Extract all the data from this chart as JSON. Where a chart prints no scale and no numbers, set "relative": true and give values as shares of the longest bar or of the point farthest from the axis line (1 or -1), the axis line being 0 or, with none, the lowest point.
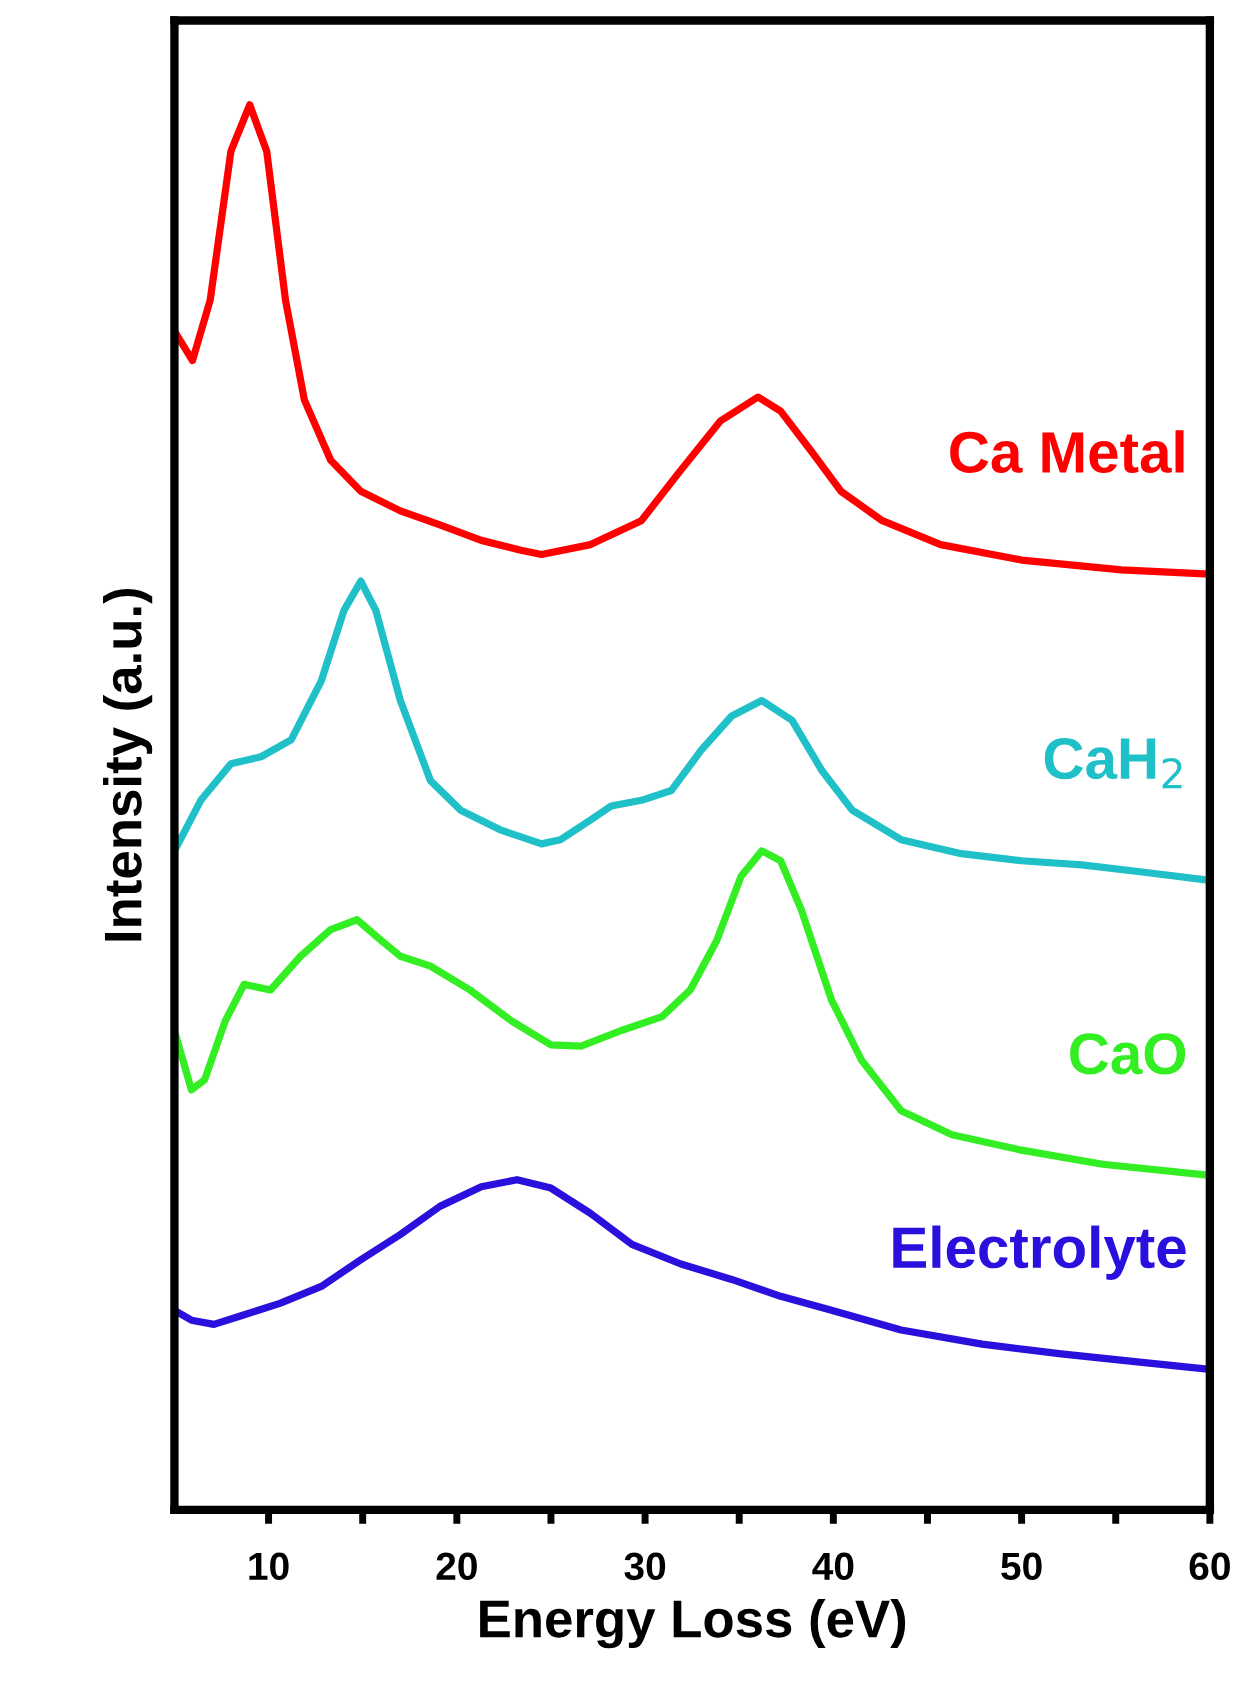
{
  "chart_data": {
    "type": "line",
    "relative": true,
    "xlabel": "Energy Loss (eV)",
    "ylabel": "Intensity (a.u.)",
    "xlim": [
      5,
      60
    ],
    "xticks": [
      10,
      {
        "value": 15,
        "label": null
      },
      20,
      {
        "value": 25,
        "label": null
      },
      30,
      {
        "value": 35,
        "label": null
      },
      40,
      {
        "value": 45,
        "label": null
      },
      50,
      {
        "value": 55,
        "label": null
      },
      60
    ],
    "legend": false,
    "grid": false,
    "series": [
      {
        "name": "Ca Metal",
        "color": "#ff0000",
        "x": [
          5.0,
          5.96,
          6.9,
          8.0,
          9.0,
          9.9,
          10.9,
          11.9,
          13.3,
          14.9,
          17.0,
          19.1,
          21.3,
          23.4,
          24.5,
          27.1,
          29.8,
          31.9,
          34.0,
          36.0,
          37.2,
          38.8,
          40.4,
          42.6,
          45.7,
          50.0,
          55.3,
          60
        ],
        "values": [
          0.839,
          0.818,
          0.861,
          0.967,
          1.0,
          0.967,
          0.861,
          0.79,
          0.747,
          0.725,
          0.711,
          0.701,
          0.69,
          0.683,
          0.68,
          0.687,
          0.704,
          0.74,
          0.775,
          0.792,
          0.782,
          0.754,
          0.725,
          0.704,
          0.687,
          0.676,
          0.669,
          0.666
        ]
      },
      {
        "name": "CaH$_{2}$",
        "color": "#1fc0c8",
        "x": [
          5.0,
          6.4,
          8.0,
          9.6,
          11.2,
          12.8,
          14.0,
          14.9,
          15.7,
          17.0,
          18.6,
          20.2,
          22.3,
          24.5,
          25.5,
          27.1,
          28.2,
          29.8,
          31.4,
          33.0,
          34.6,
          36.2,
          37.8,
          39.4,
          41.0,
          43.6,
          46.8,
          50.0,
          53.2,
          56.4,
          60
        ],
        "values": [
          0.469,
          0.505,
          0.531,
          0.536,
          0.548,
          0.59,
          0.64,
          0.661,
          0.64,
          0.576,
          0.519,
          0.498,
          0.484,
          0.474,
          0.477,
          0.491,
          0.501,
          0.505,
          0.512,
          0.541,
          0.565,
          0.576,
          0.562,
          0.526,
          0.498,
          0.477,
          0.467,
          0.462,
          0.459,
          0.454,
          0.448
        ]
      },
      {
        "name": "CaO",
        "color": "#33ee22",
        "x": [
          5.0,
          5.9,
          6.6,
          7.7,
          8.7,
          10.1,
          11.7,
          13.3,
          14.7,
          16.0,
          17.0,
          18.6,
          20.7,
          22.9,
          25.0,
          26.6,
          28.7,
          30.9,
          32.4,
          33.8,
          35.1,
          36.2,
          37.2,
          38.3,
          39.9,
          41.5,
          43.6,
          46.3,
          50.0,
          54.3,
          60
        ],
        "values": [
          0.341,
          0.299,
          0.306,
          0.348,
          0.374,
          0.37,
          0.394,
          0.413,
          0.42,
          0.405,
          0.394,
          0.387,
          0.37,
          0.348,
          0.331,
          0.33,
          0.341,
          0.351,
          0.37,
          0.405,
          0.451,
          0.469,
          0.462,
          0.427,
          0.363,
          0.32,
          0.284,
          0.267,
          0.256,
          0.246,
          0.238
        ]
      },
      {
        "name": "Electrolyte",
        "color": "#2a10dd",
        "x": [
          5.0,
          5.9,
          7.1,
          8.5,
          10.6,
          12.8,
          14.9,
          17.0,
          19.1,
          21.3,
          23.2,
          25.0,
          27.1,
          29.3,
          31.9,
          34.6,
          37.2,
          39.9,
          43.6,
          47.9,
          52.1,
          56.4,
          60
        ],
        "values": [
          0.142,
          0.135,
          0.132,
          0.138,
          0.147,
          0.159,
          0.178,
          0.196,
          0.216,
          0.23,
          0.235,
          0.229,
          0.211,
          0.189,
          0.175,
          0.164,
          0.152,
          0.142,
          0.128,
          0.118,
          0.111,
          0.105,
          0.1
        ]
      }
    ]
  }
}
